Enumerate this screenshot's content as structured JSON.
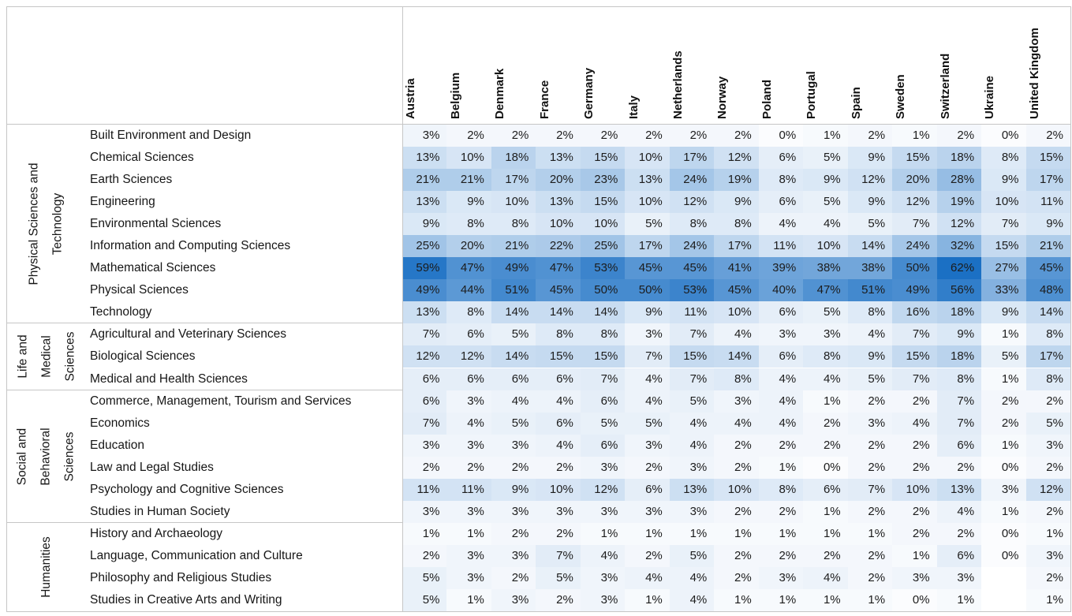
{
  "chart_data": {
    "type": "heatmap",
    "title": "",
    "unit": "%",
    "legend": "none",
    "color_scale": {
      "min_value": 0,
      "max_value": 62,
      "min_color": "#FBFCFE",
      "max_color": "#1B70C4",
      "blank_color": "#FFFFFF"
    },
    "columns": [
      "Austria",
      "Belgium",
      "Denmark",
      "France",
      "Germany",
      "Italy",
      "Netherlands",
      "Norway",
      "Poland",
      "Portugal",
      "Spain",
      "Sweden",
      "Switzerland",
      "Ukraine",
      "United Kingdom"
    ],
    "row_groups": [
      {
        "label": "Physical Sciences and Technology",
        "label_lines": "Physical Sciences and\nTechnology",
        "rows": [
          {
            "label": "Built Environment and Design",
            "values": [
              3,
              2,
              2,
              2,
              2,
              2,
              2,
              2,
              0,
              1,
              2,
              1,
              2,
              0,
              2
            ]
          },
          {
            "label": "Chemical Sciences",
            "values": [
              13,
              10,
              18,
              13,
              15,
              10,
              17,
              12,
              6,
              5,
              9,
              15,
              18,
              8,
              15
            ]
          },
          {
            "label": "Earth Sciences",
            "values": [
              21,
              21,
              17,
              20,
              23,
              13,
              24,
              19,
              8,
              9,
              12,
              20,
              28,
              9,
              17
            ]
          },
          {
            "label": "Engineering",
            "values": [
              13,
              9,
              10,
              13,
              15,
              10,
              12,
              9,
              6,
              5,
              9,
              12,
              19,
              10,
              11
            ]
          },
          {
            "label": "Environmental Sciences",
            "values": [
              9,
              8,
              8,
              10,
              10,
              5,
              8,
              8,
              4,
              4,
              5,
              7,
              12,
              7,
              9
            ]
          },
          {
            "label": "Information and Computing Sciences",
            "values": [
              25,
              20,
              21,
              22,
              25,
              17,
              24,
              17,
              11,
              10,
              14,
              24,
              32,
              15,
              21
            ]
          },
          {
            "label": "Mathematical Sciences",
            "values": [
              59,
              47,
              49,
              47,
              53,
              45,
              45,
              41,
              39,
              38,
              38,
              50,
              62,
              27,
              45
            ]
          },
          {
            "label": "Physical Sciences",
            "values": [
              49,
              44,
              51,
              45,
              50,
              50,
              53,
              45,
              40,
              47,
              51,
              49,
              56,
              33,
              48
            ]
          },
          {
            "label": "Technology",
            "values": [
              13,
              8,
              14,
              14,
              14,
              9,
              11,
              10,
              6,
              5,
              8,
              16,
              18,
              9,
              14
            ]
          }
        ]
      },
      {
        "label": "Life and Medical Sciences",
        "label_lines": "Life and\nMedical\nSciences",
        "rows": [
          {
            "label": "Agricultural and Veterinary Sciences",
            "values": [
              7,
              6,
              5,
              8,
              8,
              3,
              7,
              4,
              3,
              3,
              4,
              7,
              9,
              1,
              8
            ]
          },
          {
            "label": "Biological Sciences",
            "values": [
              12,
              12,
              14,
              15,
              15,
              7,
              15,
              14,
              6,
              8,
              9,
              15,
              18,
              5,
              17
            ]
          },
          {
            "label": "Medical and Health Sciences",
            "values": [
              6,
              6,
              6,
              6,
              7,
              4,
              7,
              8,
              4,
              4,
              5,
              7,
              8,
              1,
              8
            ]
          }
        ]
      },
      {
        "label": "Social and Behavioral Sciences",
        "label_lines": "Social and\nBehavioral\nSciences",
        "rows": [
          {
            "label": "Commerce, Management, Tourism and Services",
            "values": [
              6,
              3,
              4,
              4,
              6,
              4,
              5,
              3,
              4,
              1,
              2,
              2,
              7,
              2,
              2
            ]
          },
          {
            "label": "Economics",
            "values": [
              7,
              4,
              5,
              6,
              5,
              5,
              4,
              4,
              4,
              2,
              3,
              4,
              7,
              2,
              5
            ]
          },
          {
            "label": "Education",
            "values": [
              3,
              3,
              3,
              4,
              6,
              3,
              4,
              2,
              2,
              2,
              2,
              2,
              6,
              1,
              3
            ]
          },
          {
            "label": "Law and Legal Studies",
            "values": [
              2,
              2,
              2,
              2,
              3,
              2,
              3,
              2,
              1,
              0,
              2,
              2,
              2,
              0,
              2
            ]
          },
          {
            "label": "Psychology and Cognitive Sciences",
            "values": [
              11,
              11,
              9,
              10,
              12,
              6,
              13,
              10,
              8,
              6,
              7,
              10,
              13,
              3,
              12
            ]
          },
          {
            "label": "Studies in Human Society",
            "values": [
              3,
              3,
              3,
              3,
              3,
              3,
              3,
              2,
              2,
              1,
              2,
              2,
              4,
              1,
              2
            ]
          }
        ]
      },
      {
        "label": "Humanities",
        "label_lines": "Humanities",
        "rows": [
          {
            "label": "History and Archaeology",
            "values": [
              1,
              1,
              2,
              2,
              1,
              1,
              1,
              1,
              1,
              1,
              1,
              2,
              2,
              0,
              1
            ]
          },
          {
            "label": "Language, Communication and Culture",
            "values": [
              2,
              3,
              3,
              7,
              4,
              2,
              5,
              2,
              2,
              2,
              2,
              1,
              6,
              0,
              3
            ]
          },
          {
            "label": "Philosophy and Religious Studies",
            "values": [
              5,
              3,
              2,
              5,
              3,
              4,
              4,
              2,
              3,
              4,
              2,
              3,
              3,
              null,
              2
            ]
          },
          {
            "label": "Studies in Creative Arts and Writing",
            "values": [
              5,
              1,
              3,
              2,
              3,
              1,
              4,
              1,
              1,
              1,
              1,
              0,
              1,
              null,
              1
            ]
          }
        ]
      }
    ]
  }
}
